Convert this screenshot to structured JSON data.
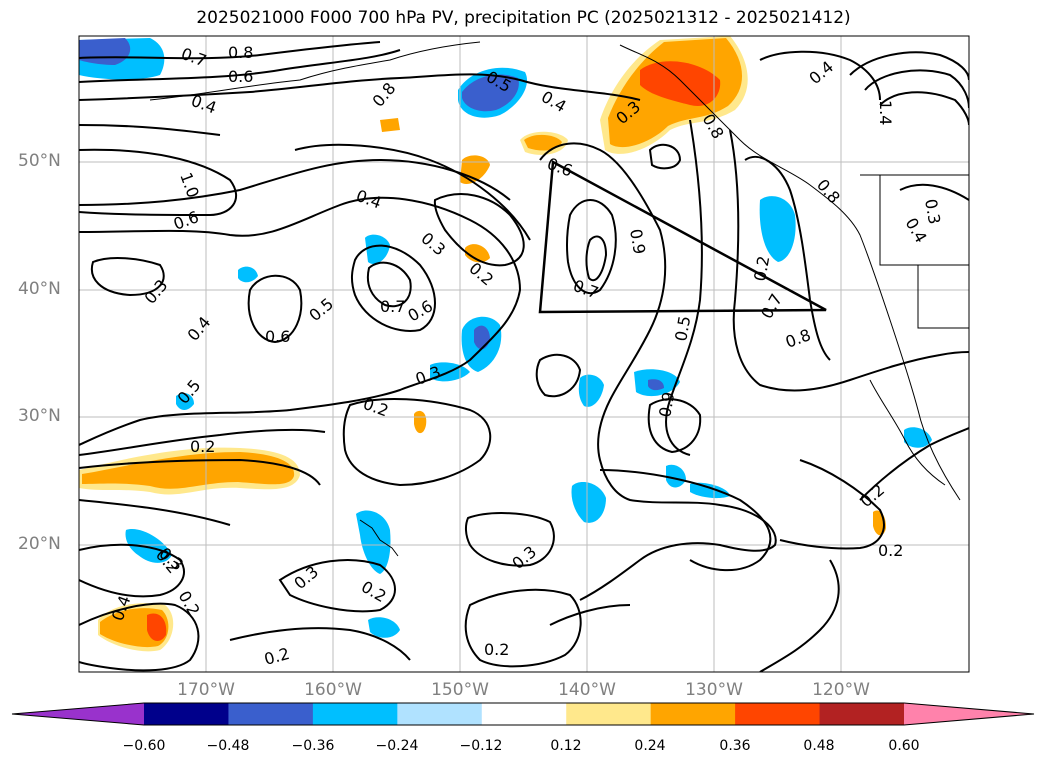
{
  "title": "2025021000 F000 700 hPa PV, precipitation PC (2025021312 - 2025021412)",
  "lat_ticks": [
    "50°N",
    "40°N",
    "30°N",
    "20°N"
  ],
  "lon_ticks": [
    "170°W",
    "160°W",
    "150°W",
    "140°W",
    "130°W",
    "120°W"
  ],
  "colorbar": {
    "ticks": [
      "−0.60",
      "−0.48",
      "−0.36",
      "−0.24",
      "−0.12",
      "0.12",
      "0.24",
      "0.36",
      "0.48",
      "0.60"
    ],
    "colors": [
      "#9932cc",
      "#00008b",
      "#3a5fcd",
      "#00bfff",
      "#b0e2ff",
      "#ffffff",
      "#ffe88c",
      "#ffa500",
      "#ff4500",
      "#b22222",
      "#ff82ab"
    ]
  },
  "contour_labels": [
    "0.7",
    "0.8",
    "0.6",
    "0.4",
    "0.8",
    "1.0",
    "0.6",
    "0.4",
    "0.3",
    "0.6",
    "0.5",
    "0.7",
    "0.6",
    "0.4",
    "0.3",
    "0.2",
    "0.3",
    "0.5",
    "0.2",
    "0.5",
    "0.4",
    "0.3",
    "0.6",
    "0.7",
    "0.9",
    "0.5",
    "0.8",
    "0.7",
    "0.8",
    "0.4",
    "0.2",
    "0.2",
    "0.3",
    "0.3",
    "0.2",
    "0.3",
    "0.2",
    "0.2",
    "0.4",
    "0.2",
    "0.2",
    "0.8",
    "1.4",
    "0.4",
    "0.3",
    "0.2",
    "0.9",
    "0.2"
  ]
}
